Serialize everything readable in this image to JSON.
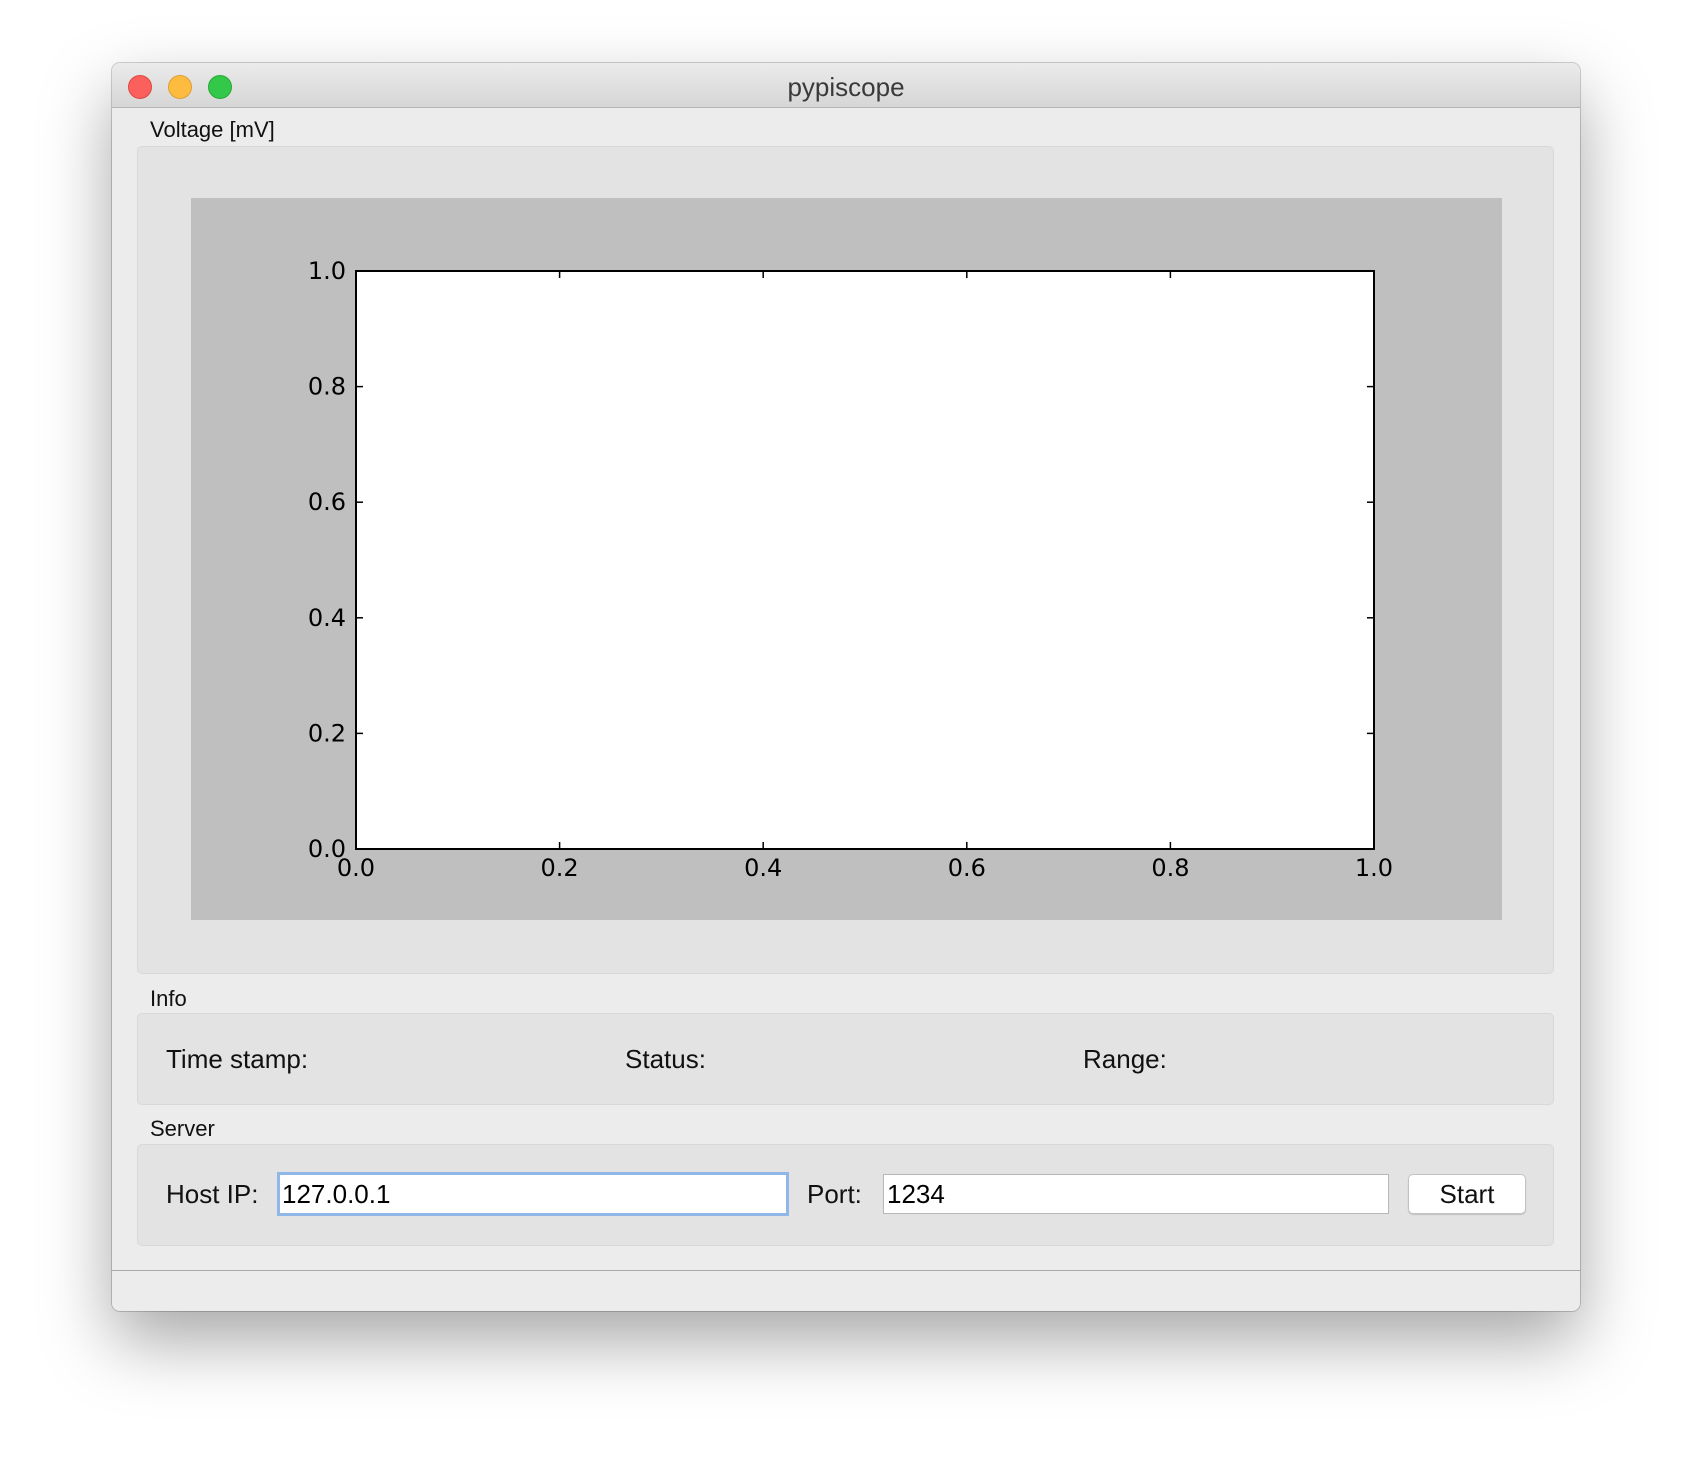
{
  "window": {
    "title": "pypiscope"
  },
  "plot_group": {
    "label": "Voltage [mV]"
  },
  "chart_data": {
    "type": "line",
    "title": "",
    "xlabel": "",
    "ylabel": "",
    "xlim": [
      0.0,
      1.0
    ],
    "ylim": [
      0.0,
      1.0
    ],
    "xticks": [
      "0.0",
      "0.2",
      "0.4",
      "0.6",
      "0.8",
      "1.0"
    ],
    "yticks": [
      "0.0",
      "0.2",
      "0.4",
      "0.6",
      "0.8",
      "1.0"
    ],
    "series": [],
    "grid": false
  },
  "info_group": {
    "label": "Info",
    "time_stamp_label": "Time stamp:",
    "status_label": "Status:",
    "range_label": "Range:"
  },
  "server_group": {
    "label": "Server",
    "host_label": "Host IP:",
    "host_value": "127.0.0.1",
    "port_label": "Port:",
    "port_value": "1234",
    "start_button": "Start"
  },
  "colors": {
    "figure_background": "#bfbfbf",
    "axes_background": "#ffffff",
    "focus_ring": "#8fb8e8"
  }
}
